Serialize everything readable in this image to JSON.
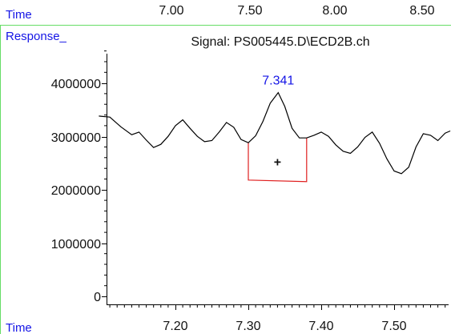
{
  "top_axis": {
    "label": "Time",
    "ticks": [
      "7.00",
      "7.50",
      "8.00",
      "8.50"
    ]
  },
  "signal_title": "Signal: PS005445.D\\ECD2B.ch",
  "colors": {
    "label_blue": "#1515e6",
    "frame_green": "#66dd66",
    "trace": "#000000",
    "baseline": "#e02020"
  },
  "chart_data": {
    "type": "line",
    "title": "Signal: PS005445.D\\ECD2B.ch",
    "xlabel": "Time",
    "ylabel": "Response_",
    "xlim": [
      7.095,
      7.577
    ],
    "ylim": [
      0,
      4600000
    ],
    "x_ticks": [
      "7.20",
      "7.30",
      "7.40",
      "7.50"
    ],
    "y_ticks": [
      "0",
      "1000000",
      "2000000",
      "3000000",
      "4000000"
    ],
    "series": [
      {
        "x": [
          7.095,
          7.11,
          7.125,
          7.14,
          7.15,
          7.16,
          7.17,
          7.18,
          7.19,
          7.2,
          7.21,
          7.22,
          7.23,
          7.24,
          7.25,
          7.26,
          7.27,
          7.28,
          7.29,
          7.3,
          7.31,
          7.32,
          7.33,
          7.341,
          7.35,
          7.36,
          7.37,
          7.38,
          7.39,
          7.4,
          7.41,
          7.42,
          7.43,
          7.44,
          7.45,
          7.46,
          7.47,
          7.48,
          7.49,
          7.5,
          7.51,
          7.52,
          7.53,
          7.54,
          7.55,
          7.56,
          7.57,
          7.577
        ],
        "values": [
          3380000,
          3360000,
          3180000,
          3030000,
          3080000,
          2930000,
          2790000,
          2850000,
          3000000,
          3200000,
          3310000,
          3150000,
          3000000,
          2900000,
          2920000,
          3080000,
          3260000,
          3170000,
          2940000,
          2880000,
          3010000,
          3280000,
          3620000,
          3820000,
          3560000,
          3150000,
          2970000,
          2970000,
          3020000,
          3080000,
          3000000,
          2840000,
          2720000,
          2680000,
          2800000,
          2980000,
          3080000,
          2870000,
          2580000,
          2350000,
          2300000,
          2420000,
          2800000,
          3050000,
          3020000,
          2920000,
          3060000,
          3100000
        ]
      }
    ],
    "peak": {
      "x": 7.341,
      "label": "7.341"
    },
    "integration": {
      "start": {
        "x": 7.3,
        "y": 2880000
      },
      "end": {
        "x": 7.38,
        "y": 2970000
      },
      "baseline": {
        "start_y": 2180000,
        "end_y": 2150000
      },
      "marker": "+"
    }
  }
}
